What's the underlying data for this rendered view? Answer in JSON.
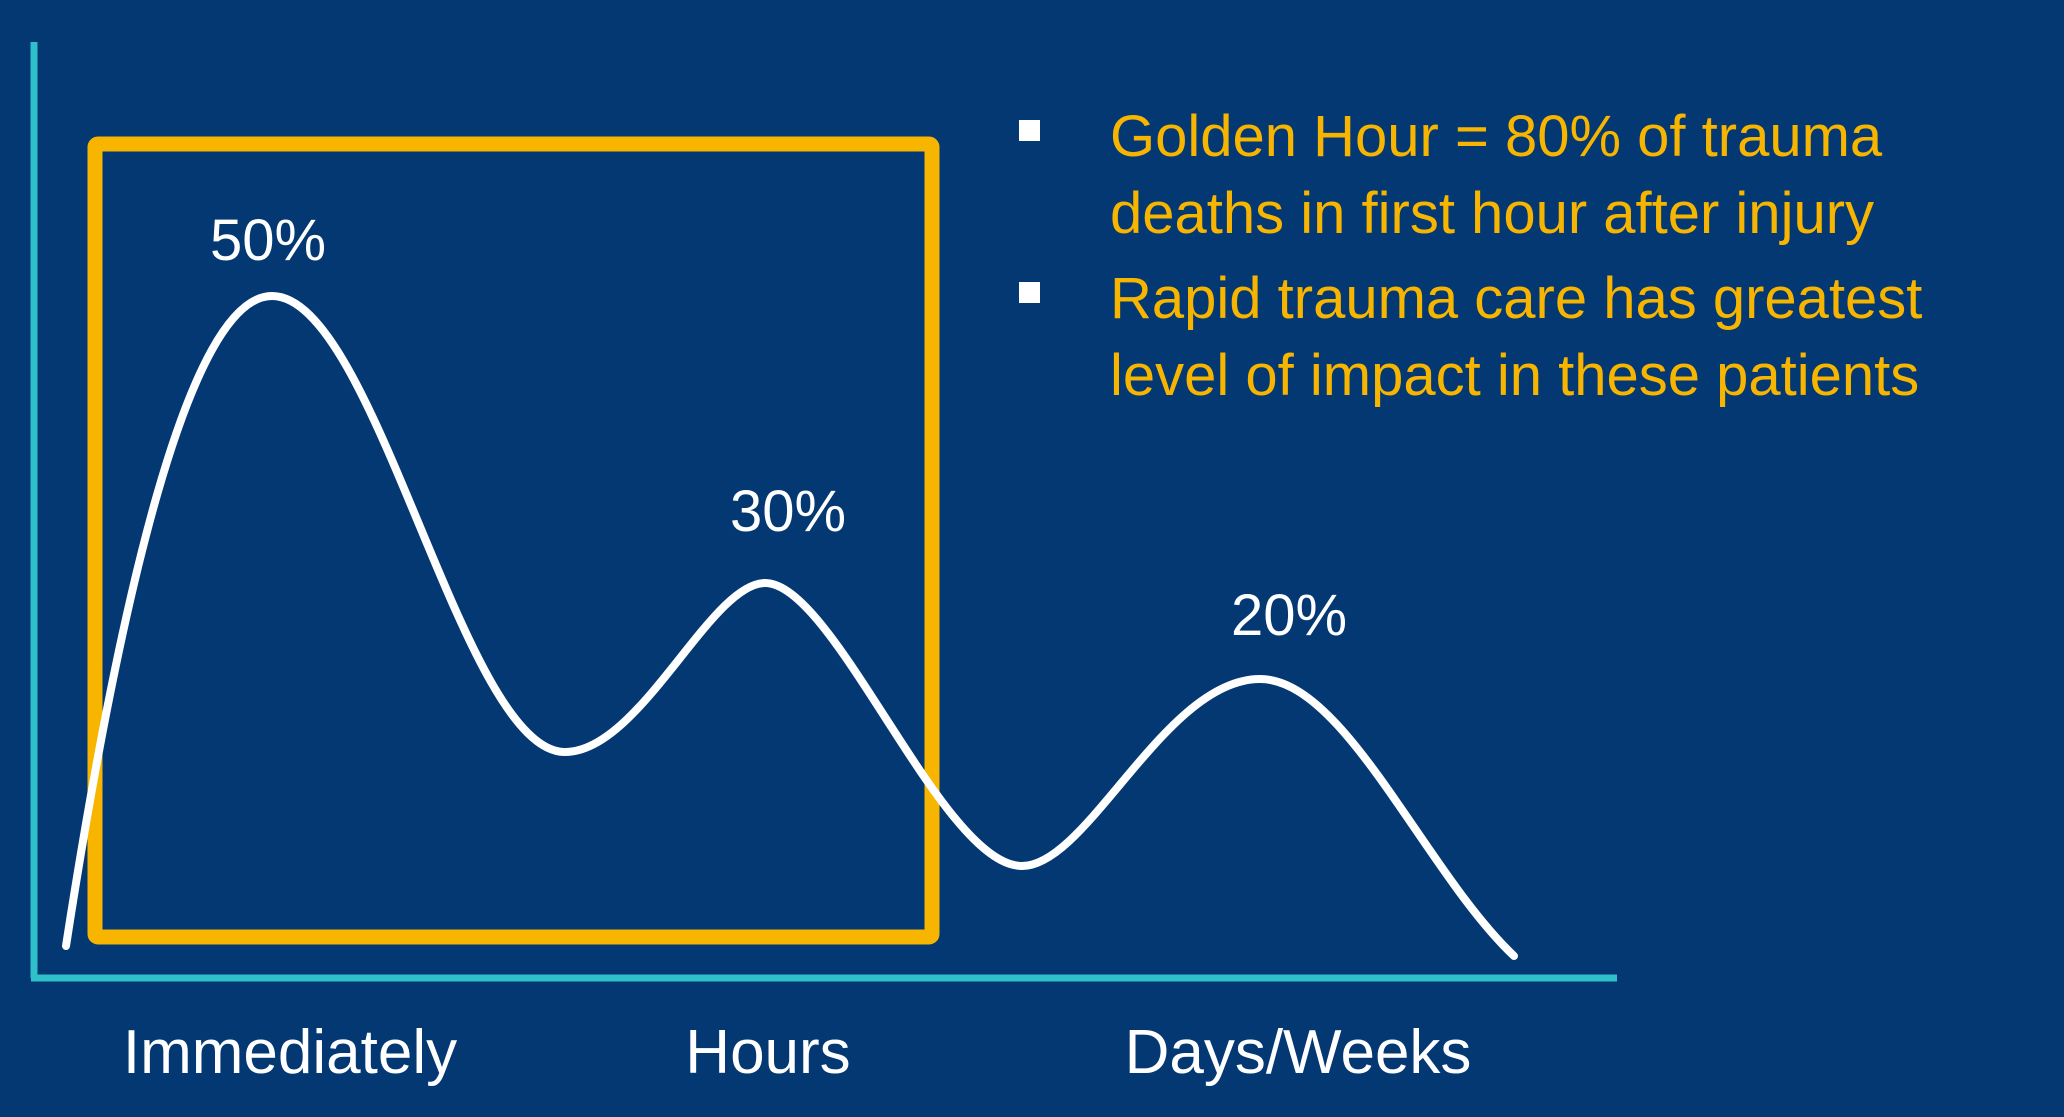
{
  "colors": {
    "background": "#033873",
    "axis": "#2fc0c9",
    "curve": "#ffffff",
    "golden_box": "#f7b500",
    "bullet_text": "#f7b500",
    "label_text": "#ffffff"
  },
  "bullets": [
    "Golden Hour = 80% of trauma deaths in first hour after injury",
    "Rapid trauma care has greatest level of impact in these patients"
  ],
  "chart_data": {
    "type": "line",
    "x_ticks": [
      "Immediately",
      "Hours",
      "Days/Weeks"
    ],
    "peaks": [
      {
        "category": "Immediately",
        "label": "50%",
        "value": 50
      },
      {
        "category": "Hours",
        "label": "30%",
        "value": 30
      },
      {
        "category": "Days/Weeks",
        "label": "20%",
        "value": 20
      }
    ],
    "highlight": {
      "covers": [
        "Immediately",
        "Hours"
      ],
      "color": "#f7b500"
    },
    "grid": false,
    "legend": "none"
  }
}
